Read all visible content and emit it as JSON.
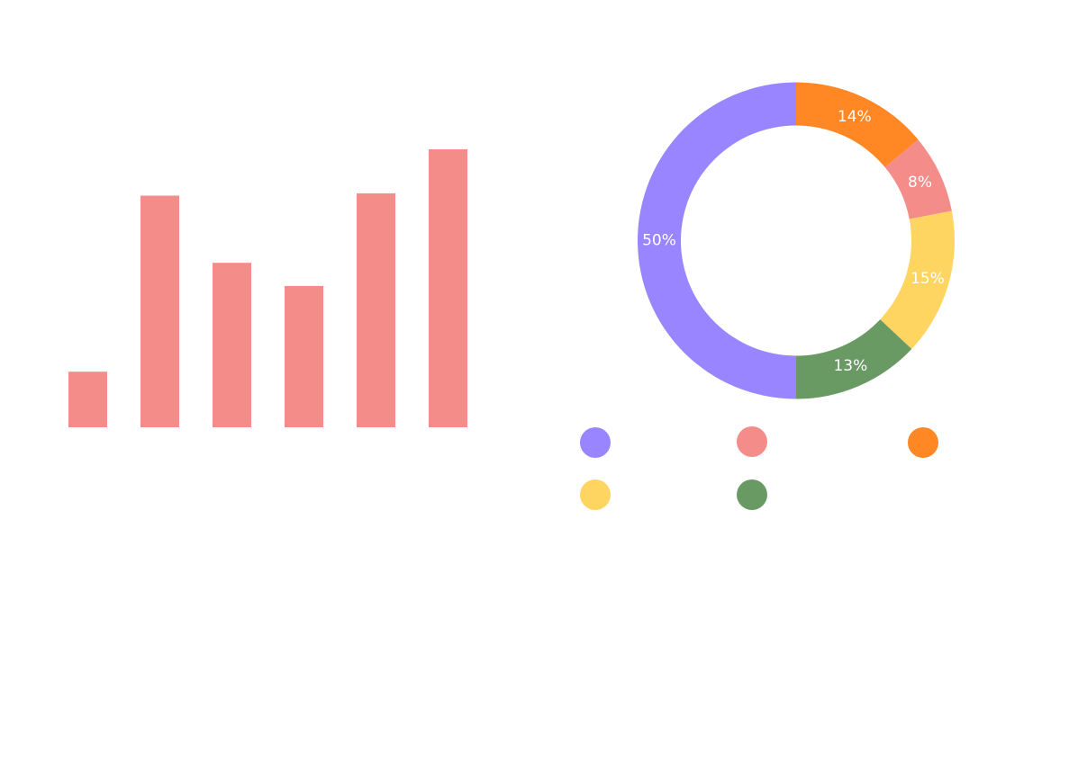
{
  "chart_data": [
    {
      "type": "bar",
      "series": [
        {
          "values": [
            12,
            50,
            35.5,
            30.5,
            50.5,
            60
          ],
          "color": "#F48C8A"
        }
      ],
      "ylim": [
        0,
        60
      ],
      "grid": false,
      "legend": "none"
    },
    {
      "type": "pie",
      "donut": true,
      "values": [
        14,
        8,
        15,
        13,
        50
      ],
      "data_labels": [
        "14%",
        "8%",
        "15%",
        "13%",
        "50%"
      ],
      "colors": [
        "#FF8724",
        "#F48C8A",
        "#FFD562",
        "#6A9A64",
        "#9985FF"
      ],
      "legend": "bottom",
      "legend_markers": [
        {
          "color": "#9985FF"
        },
        {
          "color": "#F48C8A"
        },
        {
          "color": "#FF8724"
        },
        {
          "color": "#FFD562"
        },
        {
          "color": "#6A9A64"
        }
      ]
    }
  ]
}
